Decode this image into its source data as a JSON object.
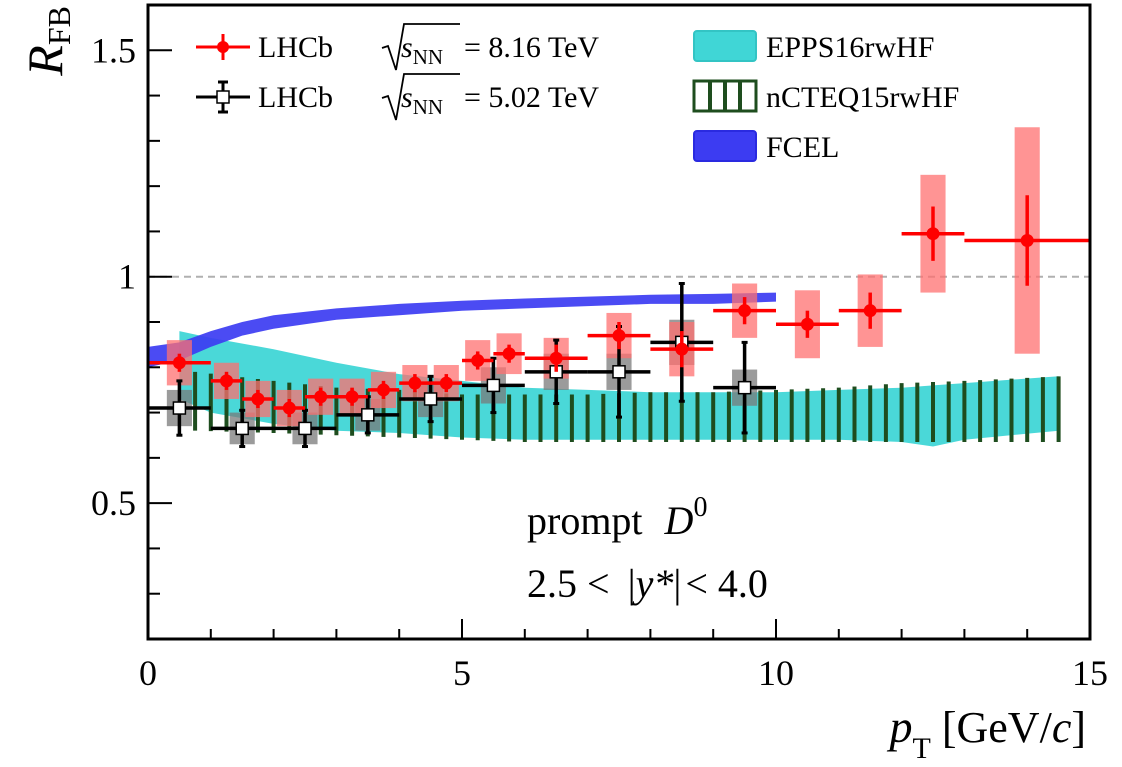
{
  "chart_data": {
    "type": "scatter",
    "xlim": [
      0,
      15
    ],
    "ylim": [
      0.2,
      1.6
    ],
    "x_ticks": [
      {
        "value": 0,
        "label": "0"
      },
      {
        "value": 5,
        "label": "5"
      },
      {
        "value": 10,
        "label": "10"
      },
      {
        "value": 15,
        "label": "15"
      }
    ],
    "y_ticks": [
      {
        "value": 0.5,
        "label": "0.5"
      },
      {
        "value": 1.0,
        "label": "1"
      },
      {
        "value": 1.5,
        "label": "1.5"
      }
    ],
    "x_minor_step": 1,
    "y_minor_step": 0.1,
    "reference_line": 1.0,
    "xlabel": {
      "main": "p",
      "sub": "T",
      "unit_open": " [GeV/",
      "unit_c": "c",
      "unit_close": "]"
    },
    "ylabel": {
      "main": "R",
      "sub": "FB"
    },
    "annotations": {
      "line1_word": "prompt",
      "line1_symbol": "D",
      "line1_sup": "0",
      "line2_left": "2.5 <",
      "line2_bar_open": "|",
      "line2_var": "y*",
      "line2_bar_close": "|",
      "line2_right": "< 4.0"
    },
    "legend": {
      "lhcb_label": "LHCb",
      "energy_8": "= 8.16 TeV",
      "energy_5": "= 5.02 TeV",
      "sqrt_var": "s",
      "sqrt_sub": "NN",
      "epps": "EPPS16rwHF",
      "ncteq": "nCTEQ15rwHF",
      "fcel": "FCEL"
    },
    "series": [
      {
        "name": "LHCb 8.16 TeV",
        "color": "#ff0000",
        "syst_color": "#ff7070",
        "points": [
          {
            "x": 0.5,
            "xlo": 0.0,
            "xhi": 1.0,
            "y": 0.81,
            "stat": 0.02,
            "syst": 0.05
          },
          {
            "x": 1.25,
            "xlo": 1.0,
            "xhi": 1.5,
            "y": 0.77,
            "stat": 0.02,
            "syst": 0.04
          },
          {
            "x": 1.75,
            "xlo": 1.5,
            "xhi": 2.0,
            "y": 0.73,
            "stat": 0.02,
            "syst": 0.04
          },
          {
            "x": 2.25,
            "xlo": 2.0,
            "xhi": 2.5,
            "y": 0.71,
            "stat": 0.02,
            "syst": 0.04
          },
          {
            "x": 2.75,
            "xlo": 2.5,
            "xhi": 3.0,
            "y": 0.735,
            "stat": 0.02,
            "syst": 0.04
          },
          {
            "x": 3.25,
            "xlo": 3.0,
            "xhi": 3.5,
            "y": 0.735,
            "stat": 0.02,
            "syst": 0.04
          },
          {
            "x": 3.75,
            "xlo": 3.5,
            "xhi": 4.0,
            "y": 0.75,
            "stat": 0.02,
            "syst": 0.04
          },
          {
            "x": 4.25,
            "xlo": 4.0,
            "xhi": 4.5,
            "y": 0.765,
            "stat": 0.02,
            "syst": 0.04
          },
          {
            "x": 4.75,
            "xlo": 4.5,
            "xhi": 5.0,
            "y": 0.765,
            "stat": 0.02,
            "syst": 0.04
          },
          {
            "x": 5.25,
            "xlo": 5.0,
            "xhi": 5.5,
            "y": 0.815,
            "stat": 0.02,
            "syst": 0.045
          },
          {
            "x": 5.75,
            "xlo": 5.5,
            "xhi": 6.0,
            "y": 0.83,
            "stat": 0.02,
            "syst": 0.045
          },
          {
            "x": 6.5,
            "xlo": 6.0,
            "xhi": 7.0,
            "y": 0.82,
            "stat": 0.03,
            "syst": 0.045
          },
          {
            "x": 7.5,
            "xlo": 7.0,
            "xhi": 8.0,
            "y": 0.87,
            "stat": 0.03,
            "syst": 0.05
          },
          {
            "x": 8.5,
            "xlo": 8.0,
            "xhi": 9.0,
            "y": 0.84,
            "stat": 0.04,
            "syst": 0.06
          },
          {
            "x": 9.5,
            "xlo": 9.0,
            "xhi": 10.0,
            "y": 0.925,
            "stat": 0.03,
            "syst": 0.06
          },
          {
            "x": 10.5,
            "xlo": 10.0,
            "xhi": 11.0,
            "y": 0.895,
            "stat": 0.03,
            "syst": 0.075
          },
          {
            "x": 11.5,
            "xlo": 11.0,
            "xhi": 12.0,
            "y": 0.925,
            "stat": 0.04,
            "syst": 0.08
          },
          {
            "x": 12.5,
            "xlo": 12.0,
            "xhi": 13.0,
            "y": 1.095,
            "stat": 0.06,
            "syst": 0.13
          },
          {
            "x": 14.0,
            "xlo": 13.0,
            "xhi": 15.0,
            "y": 1.08,
            "stat": 0.1,
            "syst": 0.25
          }
        ]
      },
      {
        "name": "LHCb 5.02 TeV",
        "color": "#000000",
        "syst_color": "#7a7a7a",
        "points": [
          {
            "x": 0.5,
            "xlo": 0.0,
            "xhi": 1.0,
            "y": 0.71,
            "stat": 0.06,
            "syst": 0.04
          },
          {
            "x": 1.5,
            "xlo": 1.0,
            "xhi": 2.0,
            "y": 0.665,
            "stat": 0.04,
            "syst": 0.035
          },
          {
            "x": 2.5,
            "xlo": 2.0,
            "xhi": 3.0,
            "y": 0.665,
            "stat": 0.04,
            "syst": 0.035
          },
          {
            "x": 3.5,
            "xlo": 3.0,
            "xhi": 4.0,
            "y": 0.695,
            "stat": 0.04,
            "syst": 0.035
          },
          {
            "x": 4.5,
            "xlo": 4.0,
            "xhi": 5.0,
            "y": 0.73,
            "stat": 0.05,
            "syst": 0.04
          },
          {
            "x": 5.5,
            "xlo": 5.0,
            "xhi": 6.0,
            "y": 0.76,
            "stat": 0.06,
            "syst": 0.04
          },
          {
            "x": 6.5,
            "xlo": 6.0,
            "xhi": 7.0,
            "y": 0.79,
            "stat": 0.07,
            "syst": 0.04
          },
          {
            "x": 7.5,
            "xlo": 7.0,
            "xhi": 8.0,
            "y": 0.79,
            "stat": 0.1,
            "syst": 0.04
          },
          {
            "x": 8.5,
            "xlo": 8.0,
            "xhi": 9.0,
            "y": 0.855,
            "stat": 0.13,
            "syst": 0.05
          },
          {
            "x": 9.5,
            "xlo": 9.0,
            "xhi": 10.0,
            "y": 0.755,
            "stat": 0.1,
            "syst": 0.04
          }
        ]
      }
    ],
    "bands": [
      {
        "name": "EPPS16rwHF",
        "color": "#40d6d6",
        "x": [
          0.5,
          1.0,
          2.0,
          3.0,
          4.0,
          5.0,
          6.0,
          7.0,
          8.0,
          9.0,
          10.0,
          11.0,
          12.0,
          12.5,
          13.0,
          14.5
        ],
        "lower": [
          0.73,
          0.7,
          0.675,
          0.66,
          0.655,
          0.645,
          0.64,
          0.64,
          0.64,
          0.64,
          0.64,
          0.64,
          0.635,
          0.625,
          0.64,
          0.66
        ],
        "upper": [
          0.88,
          0.865,
          0.84,
          0.81,
          0.785,
          0.77,
          0.755,
          0.75,
          0.745,
          0.745,
          0.745,
          0.75,
          0.755,
          0.76,
          0.765,
          0.78
        ]
      },
      {
        "name": "nCTEQ15rwHF",
        "color": "#1e4d1e",
        "x": [
          0.75,
          2.0,
          3.0,
          4.0,
          5.0,
          6.0,
          7.0,
          8.0,
          9.0,
          10.0,
          11.0,
          12.0,
          13.0,
          14.5
        ],
        "lower": [
          0.66,
          0.655,
          0.65,
          0.645,
          0.64,
          0.635,
          0.635,
          0.635,
          0.635,
          0.635,
          0.635,
          0.635,
          0.635,
          0.635
        ],
        "upper": [
          0.79,
          0.77,
          0.755,
          0.75,
          0.74,
          0.74,
          0.74,
          0.745,
          0.745,
          0.75,
          0.755,
          0.765,
          0.77,
          0.78
        ],
        "hatch_step": 0.25
      },
      {
        "name": "FCEL",
        "color": "#3c3cf2",
        "x": [
          0.0,
          0.5,
          1.0,
          1.5,
          2.0,
          3.0,
          4.0,
          5.0,
          6.0,
          7.0,
          8.0,
          9.0,
          10.0
        ],
        "lower": [
          0.8,
          0.815,
          0.845,
          0.87,
          0.885,
          0.905,
          0.915,
          0.925,
          0.93,
          0.935,
          0.94,
          0.94,
          0.945
        ],
        "upper": [
          0.845,
          0.855,
          0.88,
          0.9,
          0.915,
          0.93,
          0.94,
          0.947,
          0.952,
          0.956,
          0.96,
          0.962,
          0.965
        ]
      }
    ]
  }
}
